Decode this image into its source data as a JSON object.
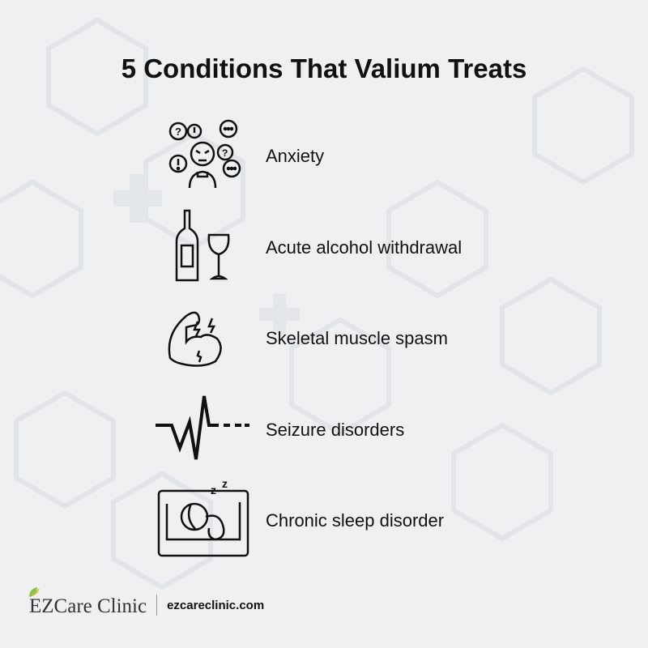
{
  "title": "5 Conditions That Valium Treats",
  "conditions": [
    {
      "label": "Anxiety",
      "icon": "anxious-person-icon"
    },
    {
      "label": "Acute alcohol withdrawal",
      "icon": "wine-bottle-glass-icon"
    },
    {
      "label": "Skeletal muscle spasm",
      "icon": "flexed-arm-icon"
    },
    {
      "label": "Seizure disorders",
      "icon": "heartbeat-line-icon"
    },
    {
      "label": "Chronic sleep disorder",
      "icon": "sleeping-person-icon"
    }
  ],
  "footer": {
    "brand": "EZCare Clinic",
    "url": "ezcareclinic.com"
  },
  "colors": {
    "background": "#eef0f2",
    "text": "#111111",
    "leaf": "#8bc34a"
  }
}
